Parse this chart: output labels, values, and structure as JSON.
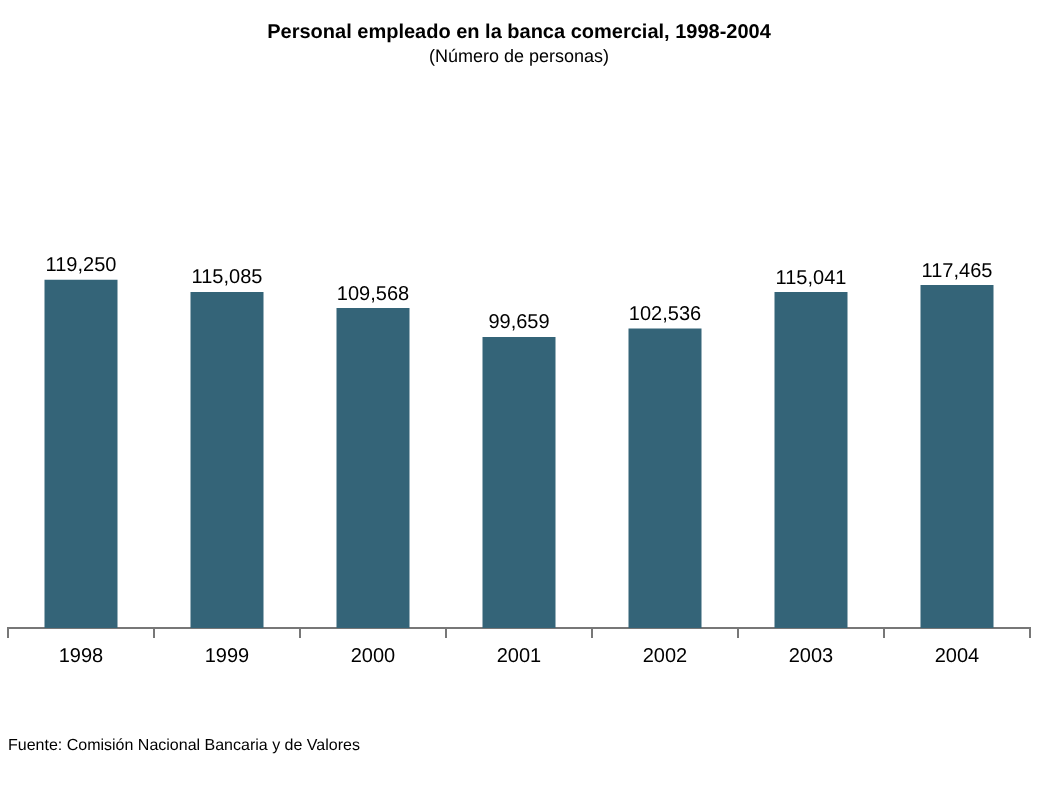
{
  "chart_data": {
    "type": "bar",
    "title": "Personal empleado en la banca comercial, 1998-2004",
    "subtitle": "(Número de personas)",
    "categories": [
      "1998",
      "1999",
      "2000",
      "2001",
      "2002",
      "2003",
      "2004"
    ],
    "values": [
      119250,
      115085,
      109568,
      99659,
      102536,
      115041,
      117465
    ],
    "value_labels": [
      "119,250",
      "115,085",
      "109,568",
      "99,659",
      "102,536",
      "115,041",
      "117,465"
    ],
    "color": "#346478",
    "grid": false,
    "legend": false,
    "annotations": [
      "Fuente: Comisión Nacional Bancaria y de Valores"
    ]
  }
}
